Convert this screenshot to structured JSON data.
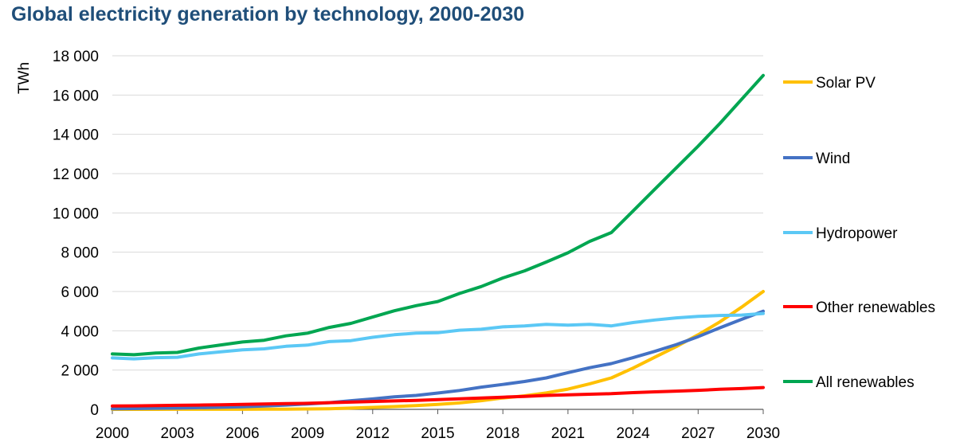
{
  "chart_data": {
    "type": "line",
    "title": "Global electricity generation by technology, 2000-2030",
    "ylabel": "TWh",
    "xlabel": "",
    "ylim": [
      0,
      18000
    ],
    "xlim": [
      2000,
      2030
    ],
    "yticks": [
      0,
      2000,
      4000,
      6000,
      8000,
      10000,
      12000,
      14000,
      16000,
      18000
    ],
    "ytick_labels": [
      "0",
      "2 000",
      "4 000",
      "6 000",
      "8 000",
      "10 000",
      "12 000",
      "14 000",
      "16 000",
      "18 000"
    ],
    "xticks": [
      2000,
      2003,
      2006,
      2009,
      2012,
      2015,
      2018,
      2021,
      2024,
      2027,
      2030
    ],
    "xtick_labels": [
      "2000",
      "2003",
      "2006",
      "2009",
      "2012",
      "2015",
      "2018",
      "2021",
      "2024",
      "2027",
      "2030"
    ],
    "grid": "horizontal",
    "legend_position": "right",
    "x": [
      2000,
      2001,
      2002,
      2003,
      2004,
      2005,
      2006,
      2007,
      2008,
      2009,
      2010,
      2011,
      2012,
      2013,
      2014,
      2015,
      2016,
      2017,
      2018,
      2019,
      2020,
      2021,
      2022,
      2023,
      2024,
      2025,
      2026,
      2027,
      2028,
      2029,
      2030
    ],
    "series": [
      {
        "name": "Solar PV",
        "color": "#ffc000",
        "values": [
          1,
          2,
          2,
          3,
          4,
          5,
          6,
          8,
          12,
          20,
          32,
          65,
          100,
          140,
          190,
          250,
          330,
          440,
          580,
          690,
          840,
          1030,
          1300,
          1600,
          2100,
          2650,
          3200,
          3800,
          4450,
          5200,
          6000
        ]
      },
      {
        "name": "Wind",
        "color": "#4472c4",
        "values": [
          30,
          40,
          55,
          65,
          85,
          105,
          135,
          170,
          220,
          275,
          340,
          440,
          530,
          640,
          710,
          830,
          960,
          1130,
          1270,
          1420,
          1600,
          1870,
          2120,
          2330,
          2630,
          2950,
          3300,
          3700,
          4150,
          4580,
          5000
        ]
      },
      {
        "name": "Hydropower",
        "color": "#5bc8f5",
        "values": [
          2620,
          2570,
          2630,
          2650,
          2820,
          2930,
          3030,
          3080,
          3210,
          3270,
          3450,
          3500,
          3670,
          3800,
          3880,
          3900,
          4030,
          4080,
          4200,
          4250,
          4330,
          4290,
          4330,
          4250,
          4420,
          4550,
          4660,
          4730,
          4780,
          4800,
          4880
        ]
      },
      {
        "name": "Other renewables",
        "color": "#ff0000",
        "values": [
          170,
          180,
          190,
          205,
          220,
          235,
          255,
          270,
          290,
          310,
          340,
          370,
          400,
          430,
          460,
          500,
          540,
          580,
          620,
          660,
          710,
          740,
          770,
          800,
          850,
          890,
          930,
          970,
          1020,
          1060,
          1110
        ]
      },
      {
        "name": "All renewables",
        "color": "#00a651",
        "values": [
          2820,
          2780,
          2870,
          2900,
          3120,
          3280,
          3430,
          3520,
          3740,
          3880,
          4170,
          4380,
          4700,
          5020,
          5280,
          5490,
          5900,
          6250,
          6690,
          7050,
          7500,
          7970,
          8550,
          9000,
          10100,
          11200,
          12300,
          13400,
          14550,
          15780,
          17000
        ]
      }
    ]
  }
}
